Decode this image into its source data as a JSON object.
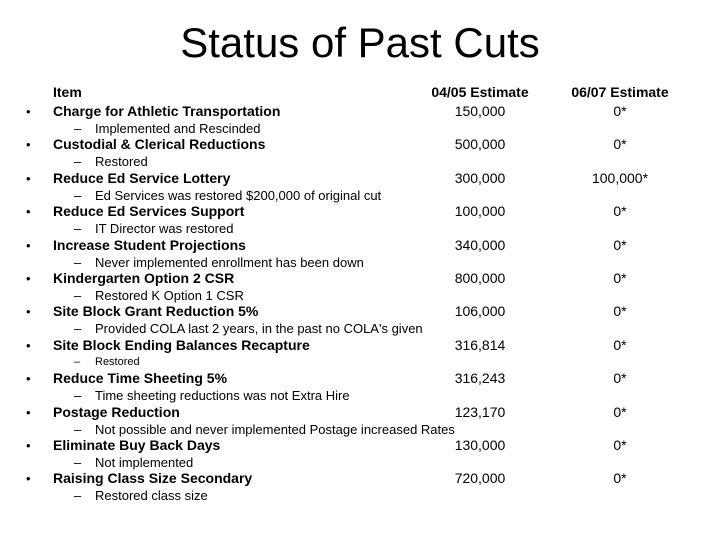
{
  "slide": {
    "title": "Status of Past Cuts",
    "bullet_char": "•",
    "dash_char": "–",
    "colors": {
      "background": "#ffffff",
      "text": "#000000"
    },
    "columns": {
      "item": "Item",
      "col1": "04/05 Estimate",
      "col2": "06/07 Estimate"
    },
    "rows": [
      {
        "item": "Charge for Athletic Transportation",
        "est0405": "150,000",
        "est0607": "0*",
        "sub": "Implemented and Rescinded",
        "sub_small": false
      },
      {
        "item": "Custodial & Clerical Reductions",
        "est0405": "500,000",
        "est0607": "0*",
        "sub": "Restored",
        "sub_small": false
      },
      {
        "item": "Reduce Ed Service Lottery",
        "est0405": "300,000",
        "est0607": "100,000*",
        "sub": "Ed Services was restored $200,000 of original cut",
        "sub_small": false
      },
      {
        "item": "Reduce Ed Services Support",
        "est0405": "100,000",
        "est0607": "0*",
        "sub": "IT Director was restored",
        "sub_small": false
      },
      {
        "item": "Increase Student Projections",
        "est0405": "340,000",
        "est0607": "0*",
        "sub": "Never implemented enrollment has been down",
        "sub_small": false
      },
      {
        "item": "Kindergarten Option 2 CSR",
        "est0405": "800,000",
        "est0607": "0*",
        "sub": "Restored K Option 1 CSR",
        "sub_small": false
      },
      {
        "item": "Site Block Grant Reduction 5%",
        "est0405": "106,000",
        "est0607": "0*",
        "sub": "Provided COLA last 2 years, in the past no COLA's given",
        "sub_small": false
      },
      {
        "item": "Site Block Ending Balances Recapture",
        "est0405": "316,814",
        "est0607": "0*",
        "sub": "Restored",
        "sub_small": true
      },
      {
        "item": "Reduce Time Sheeting 5%",
        "est0405": "316,243",
        "est0607": "0*",
        "sub": "Time sheeting reductions was not Extra Hire",
        "sub_small": false
      },
      {
        "item": "Postage Reduction",
        "est0405": "123,170",
        "est0607": "0*",
        "sub": "Not possible and never implemented Postage increased Rates",
        "sub_small": false
      },
      {
        "item": "Eliminate Buy Back Days",
        "est0405": "130,000",
        "est0607": "0*",
        "sub": "Not implemented",
        "sub_small": false
      },
      {
        "item": "Raising Class Size Secondary",
        "est0405": "720,000",
        "est0607": "0*",
        "sub": "Restored class size",
        "sub_small": false
      }
    ]
  }
}
